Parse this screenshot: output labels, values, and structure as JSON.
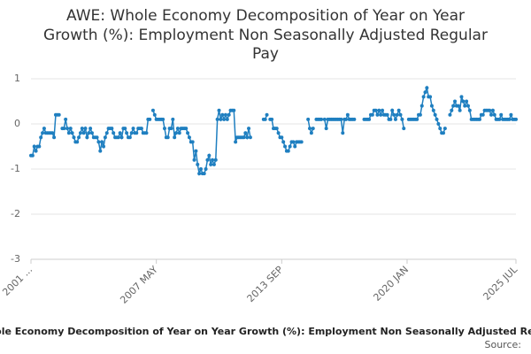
{
  "chart_data": {
    "type": "line",
    "title_lines": [
      "AWE: Whole Economy Decomposition of Year on Year",
      "Growth (%): Employment Non Seasonally Adjusted Regular",
      "Pay"
    ],
    "footer": "AWE: Whole Economy Decomposition of Year on Year Growth (%): Employment Non Seasonally Adjusted Regular Pay",
    "source": "Source:",
    "color": "#1f7fc0",
    "ylim": [
      -3,
      1
    ],
    "yticks": [
      -3,
      -2,
      -1,
      0,
      1
    ],
    "grid": true,
    "categories": [
      "2001 ...",
      null,
      null,
      null,
      null,
      null,
      null,
      null,
      null,
      null,
      null,
      null,
      null,
      null,
      null,
      null,
      null,
      null,
      null,
      null,
      null,
      null,
      null,
      null,
      null,
      null,
      null,
      null,
      null,
      null,
      null,
      null,
      null,
      null,
      null,
      null,
      null,
      null,
      null,
      null,
      null,
      null,
      null,
      null,
      null,
      null,
      null,
      null,
      null,
      null,
      null,
      null,
      null,
      null,
      null,
      null,
      null,
      null,
      null,
      null,
      null,
      null,
      null,
      null,
      null,
      null,
      null,
      null,
      null,
      null,
      null,
      null,
      null,
      null,
      null,
      null,
      "2007 MAY",
      null,
      null,
      null,
      null,
      null,
      null,
      null,
      null,
      null,
      null,
      null,
      null,
      null,
      null,
      null,
      null,
      null,
      null,
      null,
      null,
      null,
      null,
      null,
      null,
      null,
      null,
      null,
      null,
      null,
      null,
      null,
      null,
      null,
      null,
      null,
      null,
      null,
      null,
      null,
      null,
      null,
      null,
      null,
      null,
      null,
      null,
      null,
      null,
      null,
      null,
      null,
      null,
      null,
      null,
      null,
      null,
      null,
      null,
      null,
      null,
      null,
      null,
      null,
      null,
      null,
      null,
      null,
      null,
      null,
      null,
      null,
      null,
      null,
      null,
      null,
      "2013 SEP",
      null,
      null,
      null,
      null,
      null,
      null,
      null,
      null,
      null,
      null,
      null,
      null,
      null,
      null,
      null,
      null,
      null,
      null,
      null,
      null,
      null,
      null,
      null,
      null,
      null,
      null,
      null,
      null,
      null,
      null,
      null,
      null,
      null,
      null,
      null,
      null,
      null,
      null,
      null,
      null,
      null,
      null,
      null,
      null,
      null,
      null,
      null,
      null,
      null,
      null,
      null,
      null,
      null,
      null,
      null,
      null,
      null,
      null,
      null,
      null,
      null,
      null,
      null,
      null,
      null,
      null,
      null,
      null,
      null,
      null,
      null,
      null,
      null,
      null,
      null,
      "2020 JAN",
      null,
      null,
      null,
      null,
      null,
      null,
      null,
      null,
      null,
      null,
      null,
      null,
      null,
      null,
      null,
      null,
      null,
      null,
      null,
      null,
      null,
      null,
      null,
      null,
      null,
      null,
      null,
      null,
      null,
      null,
      null,
      null,
      null,
      null,
      null,
      null,
      null,
      null,
      null,
      null,
      null,
      null,
      null,
      null,
      null,
      null,
      null,
      null,
      null,
      null,
      null,
      null,
      null,
      null,
      null,
      null,
      null,
      null,
      null,
      null,
      null,
      null,
      null,
      null,
      null,
      "2025 JUL"
    ],
    "values": [
      -0.7,
      -0.7,
      -0.5,
      -0.6,
      -0.5,
      -0.5,
      -0.3,
      -0.2,
      -0.1,
      -0.2,
      -0.2,
      -0.2,
      -0.2,
      -0.2,
      -0.3,
      0.2,
      0.2,
      0.2,
      null,
      -0.1,
      -0.1,
      0.1,
      -0.1,
      -0.2,
      -0.1,
      -0.2,
      -0.3,
      -0.4,
      -0.4,
      -0.3,
      -0.2,
      -0.1,
      -0.2,
      -0.1,
      -0.3,
      -0.2,
      -0.1,
      -0.2,
      -0.3,
      -0.3,
      -0.3,
      -0.4,
      -0.6,
      -0.4,
      -0.5,
      -0.3,
      -0.2,
      -0.1,
      -0.1,
      -0.1,
      -0.2,
      -0.3,
      -0.3,
      -0.3,
      -0.2,
      -0.3,
      -0.1,
      -0.1,
      -0.2,
      -0.3,
      -0.3,
      -0.2,
      -0.1,
      -0.2,
      -0.2,
      -0.1,
      -0.1,
      -0.1,
      -0.2,
      -0.2,
      -0.2,
      0.1,
      0.1,
      null,
      0.3,
      0.2,
      0.1,
      0.1,
      0.1,
      0.1,
      0.1,
      -0.1,
      -0.3,
      -0.3,
      -0.1,
      -0.1,
      0.1,
      -0.3,
      -0.2,
      -0.1,
      -0.2,
      -0.1,
      -0.1,
      -0.1,
      -0.1,
      -0.2,
      -0.3,
      -0.4,
      -0.4,
      -0.8,
      -0.6,
      -0.9,
      -1.1,
      -1.0,
      -1.1,
      -1.1,
      -1.0,
      -0.8,
      -0.7,
      -0.9,
      -0.8,
      -0.9,
      -0.8,
      0.1,
      0.3,
      0.1,
      0.2,
      0.1,
      0.2,
      0.1,
      0.2,
      0.3,
      0.3,
      0.3,
      -0.4,
      -0.3,
      -0.3,
      -0.3,
      -0.3,
      -0.3,
      -0.2,
      -0.3,
      -0.1,
      -0.3,
      null,
      null,
      null,
      null,
      null,
      null,
      null,
      0.1,
      0.1,
      0.2,
      null,
      0.1,
      0.1,
      -0.1,
      -0.1,
      -0.1,
      -0.2,
      -0.3,
      -0.3,
      -0.4,
      -0.5,
      -0.6,
      -0.6,
      -0.5,
      -0.4,
      -0.4,
      -0.5,
      -0.4,
      -0.4,
      -0.4,
      -0.4,
      null,
      null,
      null,
      0.1,
      -0.1,
      -0.2,
      -0.1,
      null,
      0.1,
      0.1,
      0.1,
      0.1,
      null,
      0.1,
      -0.1,
      0.1,
      0.1,
      0.1,
      0.1,
      0.1,
      0.1,
      0.1,
      0.1,
      0.1,
      -0.2,
      0.1,
      0.1,
      0.2,
      0.1,
      0.1,
      0.1,
      0.1,
      null,
      null,
      null,
      null,
      null,
      0.1,
      0.1,
      0.1,
      0.1,
      0.2,
      0.2,
      0.3,
      0.3,
      0.2,
      0.3,
      0.2,
      0.3,
      0.2,
      0.2,
      0.2,
      0.1,
      0.1,
      0.3,
      0.2,
      0.1,
      0.2,
      0.3,
      0.2,
      0.1,
      -0.1,
      null,
      null,
      0.1,
      0.1,
      0.1,
      0.1,
      0.1,
      0.1,
      0.2,
      0.2,
      0.4,
      0.6,
      0.7,
      0.8,
      0.6,
      0.6,
      0.4,
      0.3,
      0.2,
      0.1,
      0.0,
      -0.1,
      -0.2,
      -0.2,
      -0.1,
      null,
      null,
      0.2,
      0.3,
      0.4,
      0.5,
      0.4,
      0.4,
      0.3,
      0.6,
      0.5,
      0.4,
      0.5,
      0.4,
      0.3,
      0.1,
      0.1,
      0.1,
      0.1,
      0.1,
      0.1,
      0.2,
      0.2,
      0.3,
      0.3,
      0.3,
      0.3,
      0.2,
      0.3,
      0.2,
      0.1,
      0.1,
      0.1,
      0.2,
      0.1,
      0.1,
      0.1,
      0.1,
      0.1,
      0.2,
      0.1,
      0.1,
      0.1
    ]
  }
}
